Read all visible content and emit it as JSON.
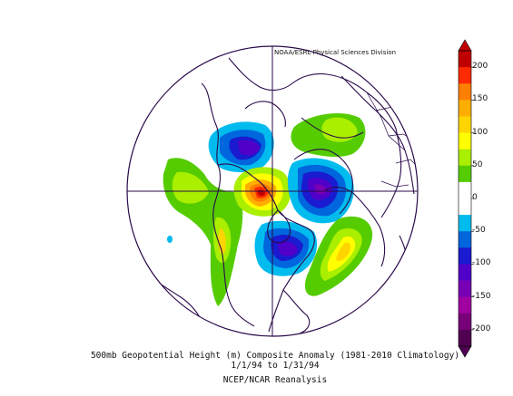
{
  "credit": "NOAA/ESRL Physical Sciences Division",
  "caption": {
    "line1": "500mb Geopotential Height (m) Composite Anomaly (1981-2010 Climatology)",
    "line2": "1/1/94  to 1/31/94",
    "line3": "NCEP/NCAR Reanalysis"
  },
  "colorbar": {
    "labels": [
      "200",
      "150",
      "100",
      "50",
      "0",
      "-50",
      "-100",
      "-150",
      "-200"
    ],
    "colors": [
      "#c00000",
      "#ff2a00",
      "#ff7f00",
      "#ffae00",
      "#ffd500",
      "#ffff00",
      "#aaee00",
      "#55cc00",
      "#ffffff",
      "#ffffff",
      "#00bbee",
      "#0066dd",
      "#1a1ad0",
      "#5000c8",
      "#7800b4",
      "#a000a0",
      "#780078",
      "#500050"
    ]
  },
  "map": {
    "projection": "north-polar-stereographic",
    "anomalies": [
      {
        "region": "western-canada-alaska",
        "sign": "negative",
        "peak_m": -130
      },
      {
        "region": "north-pacific",
        "sign": "positive",
        "peak_m": 70
      },
      {
        "region": "bering-chukchi",
        "sign": "positive",
        "peak_m": 200
      },
      {
        "region": "kara-barents",
        "sign": "negative",
        "peak_m": -150
      },
      {
        "region": "eastern-north-america",
        "sign": "negative",
        "peak_m": -120
      },
      {
        "region": "north-atlantic",
        "sign": "positive",
        "peak_m": 110
      },
      {
        "region": "central-siberia",
        "sign": "positive",
        "peak_m": 60
      }
    ]
  }
}
